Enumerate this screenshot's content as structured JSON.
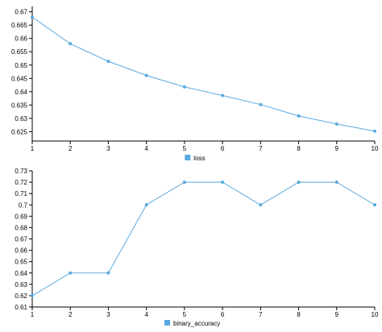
{
  "chart_data": [
    {
      "type": "line",
      "x": [
        1,
        2,
        3,
        4,
        5,
        6,
        7,
        8,
        9,
        10
      ],
      "series": [
        {
          "name": "loss",
          "values": [
            0.668,
            0.658,
            0.6514,
            0.6461,
            0.6418,
            0.6386,
            0.6352,
            0.6309,
            0.6279,
            0.6252
          ]
        }
      ],
      "ylim": [
        0.6215,
        0.672
      ],
      "yticks": [
        "0.625",
        "0.63",
        "0.635",
        "0.64",
        "0.645",
        "0.65",
        "0.655",
        "0.66",
        "0.665",
        "0.67"
      ],
      "xticks": [
        "1",
        "2",
        "3",
        "4",
        "5",
        "6",
        "7",
        "8",
        "9",
        "10"
      ],
      "title": "",
      "xlabel": "",
      "ylabel": "",
      "grid": false,
      "legend": "bottom-center",
      "color": "#5aa9e0"
    },
    {
      "type": "line",
      "x": [
        1,
        2,
        3,
        4,
        5,
        6,
        7,
        8,
        9,
        10
      ],
      "series": [
        {
          "name": "binary_accuracy",
          "values": [
            0.62,
            0.64,
            0.64,
            0.7,
            0.72,
            0.72,
            0.7,
            0.72,
            0.72,
            0.7
          ]
        }
      ],
      "ylim": [
        0.61,
        0.73
      ],
      "yticks": [
        "0.61",
        "0.62",
        "0.63",
        "0.64",
        "0.65",
        "0.66",
        "0.67",
        "0.68",
        "0.69",
        "0.7",
        "0.71",
        "0.72",
        "0.73"
      ],
      "xticks": [
        "1",
        "2",
        "3",
        "4",
        "5",
        "6",
        "7",
        "8",
        "9",
        "10"
      ],
      "title": "",
      "xlabel": "",
      "ylabel": "",
      "grid": false,
      "legend": "bottom-center",
      "color": "#5aa9e0"
    }
  ]
}
